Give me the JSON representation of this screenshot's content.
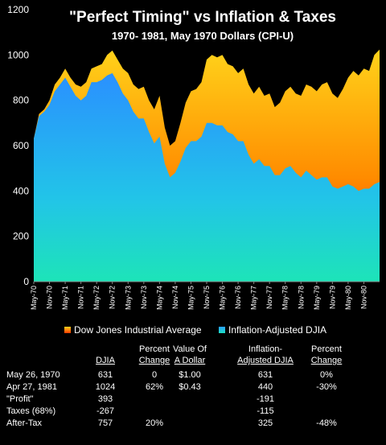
{
  "chart_data": {
    "type": "area",
    "title": "\"Perfect Timing\" vs Inflation & Taxes",
    "subtitle": "1970- 1981, May 1970 Dollars (CPI-U)",
    "ylim": [
      0,
      1200
    ],
    "yticks": [
      0,
      200,
      400,
      600,
      800,
      1000,
      1200
    ],
    "xlim": [
      0,
      132
    ],
    "xtick_labels": [
      "May-70",
      "Nov-70",
      "May-71",
      "Nov-71",
      "May-72",
      "Nov-72",
      "May-73",
      "Nov-73",
      "May-74",
      "Nov-74",
      "May-75",
      "Nov-75",
      "May-76",
      "Nov-76",
      "May-77",
      "Nov-77",
      "May-78",
      "Nov-78",
      "May-79",
      "Nov-79",
      "May-80",
      "Nov-80"
    ],
    "grid": false,
    "legend_placement": "bottom",
    "series": [
      {
        "name": "Dow Jones Industrial Average",
        "color_top": "#ffd21a",
        "color_bottom": "#ff3a00",
        "x": [
          0,
          2,
          4,
          6,
          8,
          10,
          12,
          14,
          16,
          18,
          20,
          22,
          24,
          26,
          28,
          30,
          32,
          34,
          36,
          38,
          40,
          42,
          44,
          46,
          48,
          50,
          52,
          54,
          56,
          58,
          60,
          62,
          64,
          66,
          68,
          70,
          72,
          74,
          76,
          78,
          80,
          82,
          84,
          86,
          88,
          90,
          92,
          94,
          96,
          98,
          100,
          102,
          104,
          106,
          108,
          110,
          112,
          114,
          116,
          118,
          120,
          122,
          124,
          126,
          128,
          130,
          132
        ],
        "values": [
          631,
          740,
          760,
          800,
          870,
          900,
          940,
          900,
          870,
          860,
          880,
          940,
          950,
          960,
          1000,
          1020,
          980,
          940,
          920,
          870,
          850,
          860,
          800,
          760,
          820,
          680,
          600,
          620,
          700,
          790,
          840,
          850,
          880,
          980,
          1000,
          990,
          1000,
          960,
          950,
          920,
          940,
          870,
          830,
          860,
          820,
          830,
          770,
          790,
          840,
          860,
          830,
          820,
          870,
          860,
          840,
          870,
          880,
          830,
          810,
          850,
          900,
          930,
          910,
          940,
          930,
          1000,
          1024
        ]
      },
      {
        "name": "Inflation-Adjusted DJIA",
        "color_top": "#2aa0ff",
        "color_bottom": "#1de0c0",
        "x": [
          0,
          2,
          4,
          6,
          8,
          10,
          12,
          14,
          16,
          18,
          20,
          22,
          24,
          26,
          28,
          30,
          32,
          34,
          36,
          38,
          40,
          42,
          44,
          46,
          48,
          50,
          52,
          54,
          56,
          58,
          60,
          62,
          64,
          66,
          68,
          70,
          72,
          74,
          76,
          78,
          80,
          82,
          84,
          86,
          88,
          90,
          92,
          94,
          96,
          98,
          100,
          102,
          104,
          106,
          108,
          110,
          112,
          114,
          116,
          118,
          120,
          122,
          124,
          126,
          128,
          130,
          132
        ],
        "values": [
          631,
          730,
          750,
          780,
          840,
          870,
          900,
          860,
          820,
          800,
          820,
          880,
          880,
          890,
          910,
          920,
          880,
          830,
          800,
          750,
          720,
          720,
          660,
          610,
          640,
          520,
          460,
          480,
          530,
          590,
          620,
          620,
          640,
          700,
          700,
          690,
          690,
          660,
          650,
          620,
          620,
          560,
          520,
          540,
          510,
          510,
          470,
          470,
          500,
          510,
          480,
          460,
          490,
          470,
          450,
          460,
          460,
          420,
          410,
          420,
          430,
          420,
          400,
          410,
          410,
          430,
          440
        ]
      }
    ]
  },
  "table": {
    "headers": [
      {
        "lines": [
          "",
          "DJIA"
        ]
      },
      {
        "lines": [
          "Percent",
          "Change"
        ]
      },
      {
        "lines": [
          "Value Of",
          "A Dollar"
        ]
      },
      {
        "lines": [
          "Inflation-",
          "Adjusted DJIA"
        ]
      },
      {
        "lines": [
          "Percent",
          "Change"
        ]
      }
    ],
    "rows": [
      {
        "label": "May 26, 1970",
        "cells": [
          "631",
          "0",
          "$1.00",
          "631",
          "0%"
        ]
      },
      {
        "label": "Apr 27, 1981",
        "cells": [
          "1024",
          "62%",
          "$0.43",
          "440",
          "-30%"
        ]
      },
      {
        "label": "\"Profit\"",
        "cells": [
          "393",
          "",
          "",
          "-191",
          ""
        ]
      },
      {
        "label": "Taxes (68%)",
        "cells": [
          "-267",
          "",
          "",
          "-115",
          ""
        ]
      },
      {
        "label": "After-Tax",
        "cells": [
          "757",
          "20%",
          "",
          "325",
          "-48%"
        ]
      }
    ]
  }
}
